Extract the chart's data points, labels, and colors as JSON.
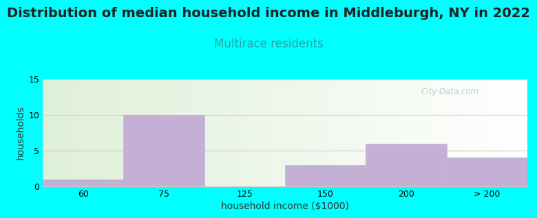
{
  "title": "Distribution of median household income in Middleburgh, NY in 2022",
  "subtitle": "Multirace residents",
  "xlabel": "household income ($1000)",
  "ylabel": "households",
  "background_color": "#00FFFF",
  "plot_bg_color_left": "#dff0d8",
  "plot_bg_color_right": "#ffffff",
  "bar_color": "#c5b0d5",
  "bar_edge_color": "#c5b0d5",
  "categories": [
    "60",
    "75",
    "125",
    "150",
    "200",
    "> 200"
  ],
  "values": [
    1,
    10,
    0,
    3,
    6,
    4
  ],
  "ylim": [
    0,
    15
  ],
  "yticks": [
    0,
    5,
    10,
    15
  ],
  "title_fontsize": 14,
  "subtitle_fontsize": 12,
  "subtitle_color": "#2aa0a0",
  "title_color": "#222222",
  "label_fontsize": 10,
  "tick_fontsize": 9,
  "watermark_text": "City-Data.com",
  "watermark_color": "#b0c8cc",
  "grid_color": "#cccccc"
}
